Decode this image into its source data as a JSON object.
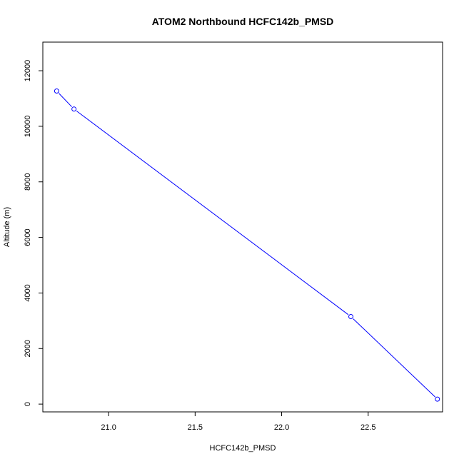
{
  "chart_data": {
    "type": "line",
    "title": "ATOM2 Northbound HCFC142b_PMSD",
    "xlabel": "HCFC142b_PMSD",
    "ylabel": "Altitude (m)",
    "xlim": [
      20.62,
      22.93
    ],
    "ylim": [
      -280,
      13030
    ],
    "x_ticks": [
      21.0,
      21.5,
      22.0,
      22.5
    ],
    "x_tick_labels": [
      "21.0",
      "21.5",
      "22.0",
      "22.5"
    ],
    "y_ticks": [
      0,
      2000,
      4000,
      6000,
      8000,
      10000,
      12000
    ],
    "y_tick_labels": [
      "0",
      "2000",
      "4000",
      "6000",
      "8000",
      "10000",
      "12000"
    ],
    "series": [
      {
        "color": "#0000ff",
        "marker": "open-circle",
        "points": [
          {
            "x": 22.9,
            "y": 180
          },
          {
            "x": 22.4,
            "y": 3150
          },
          {
            "x": 20.8,
            "y": 10620
          },
          {
            "x": 20.7,
            "y": 11270
          }
        ]
      }
    ],
    "grid": false,
    "legend": "none"
  }
}
